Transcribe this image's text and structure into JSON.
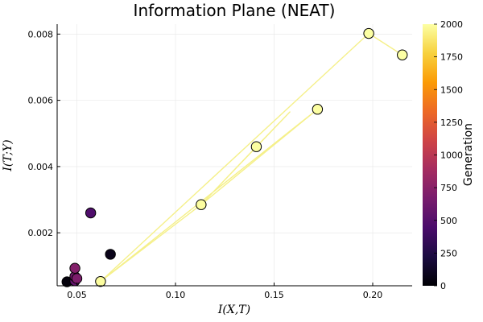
{
  "chart_data": {
    "type": "scatter",
    "title": "Information Plane (NEAT)",
    "xlabel": "I(X,T)",
    "ylabel": "I(T;Y)",
    "xlim": [
      0.04,
      0.22
    ],
    "ylim": [
      0.0004,
      0.0083
    ],
    "xticks": [
      0.05,
      0.1,
      0.15,
      0.2
    ],
    "xtick_labels": [
      "0.05",
      "0.10",
      "0.15",
      "0.20"
    ],
    "yticks": [
      0.002,
      0.004,
      0.006,
      0.008
    ],
    "ytick_labels": [
      "0.002",
      "0.004",
      "0.006",
      "0.008"
    ],
    "grid": true,
    "colorbar": {
      "label": "Generation",
      "range": [
        0,
        2000
      ],
      "ticks": [
        0,
        250,
        500,
        750,
        1000,
        1250,
        1500,
        1750,
        2000
      ],
      "tick_labels": [
        "0",
        "250",
        "500",
        "750",
        "1000",
        "1250",
        "1500",
        "1750",
        "2000"
      ],
      "colormap": [
        "#000004",
        "#1b0c41",
        "#4a0c6b",
        "#781c6d",
        "#a52c60",
        "#cf4446",
        "#ed6925",
        "#fb9b06",
        "#f7d13d",
        "#fcffa4"
      ]
    },
    "points": [
      {
        "x": 0.045,
        "y": 0.00052,
        "g": 30
      },
      {
        "x": 0.067,
        "y": 0.00135,
        "g": 80
      },
      {
        "x": 0.057,
        "y": 0.0026,
        "g": 470
      },
      {
        "x": 0.049,
        "y": 0.00055,
        "g": 560
      },
      {
        "x": 0.049,
        "y": 0.00068,
        "g": 640
      },
      {
        "x": 0.05,
        "y": 0.00062,
        "g": 690
      },
      {
        "x": 0.049,
        "y": 0.00093,
        "g": 720
      },
      {
        "x": 0.062,
        "y": 0.00053,
        "g": 1990
      },
      {
        "x": 0.113,
        "y": 0.00285,
        "g": 1992
      },
      {
        "x": 0.141,
        "y": 0.0046,
        "g": 1994
      },
      {
        "x": 0.172,
        "y": 0.00573,
        "g": 1996
      },
      {
        "x": 0.198,
        "y": 0.00802,
        "g": 1998
      },
      {
        "x": 0.215,
        "y": 0.00737,
        "g": 2000
      }
    ],
    "trajectory": [
      {
        "x": 0.062,
        "y": 0.00053
      },
      {
        "x": 0.113,
        "y": 0.00285
      },
      {
        "x": 0.141,
        "y": 0.0046
      },
      {
        "x": 0.158,
        "y": 0.00565
      },
      {
        "x": 0.113,
        "y": 0.00285
      },
      {
        "x": 0.172,
        "y": 0.00573
      },
      {
        "x": 0.062,
        "y": 0.00053
      },
      {
        "x": 0.198,
        "y": 0.00802
      },
      {
        "x": 0.215,
        "y": 0.00737
      }
    ]
  }
}
